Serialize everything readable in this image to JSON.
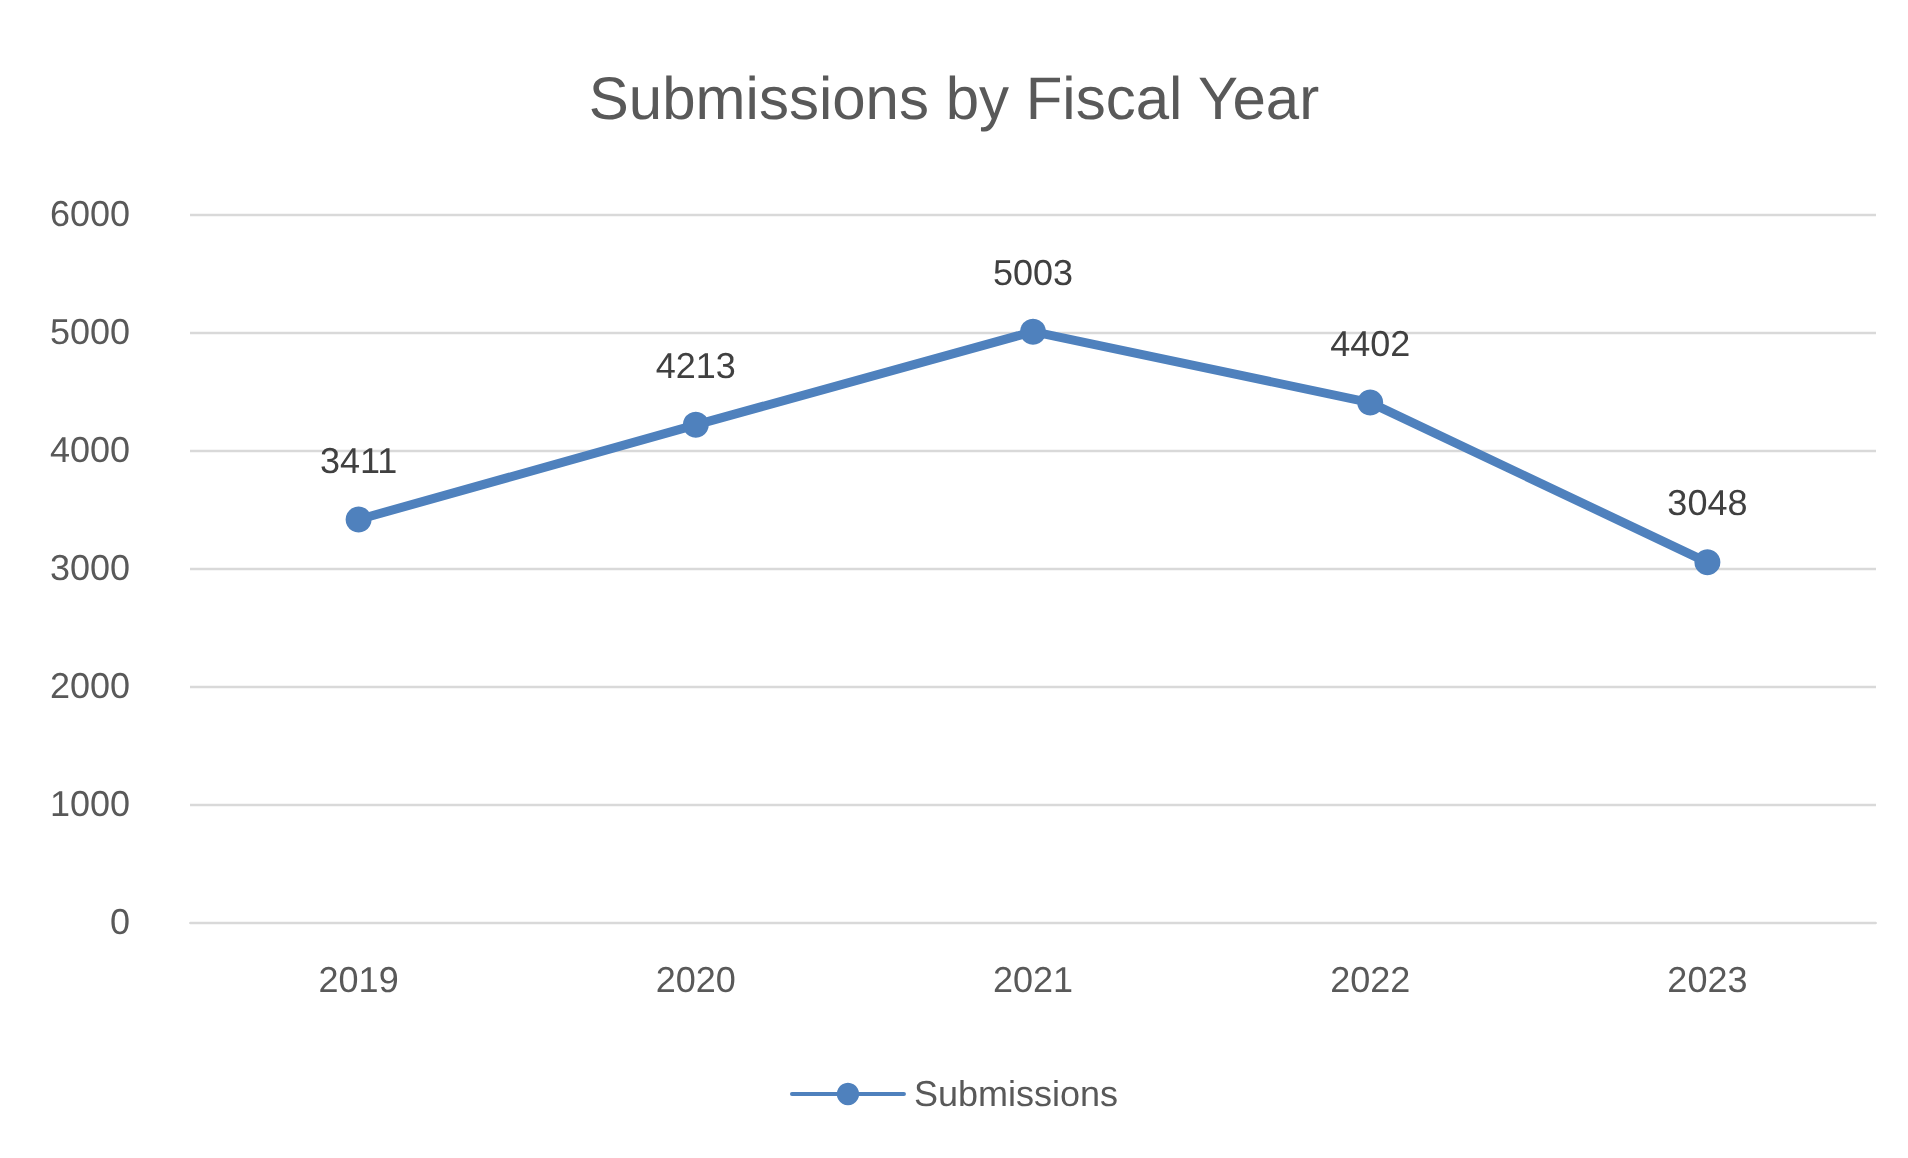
{
  "chart_data": {
    "type": "line",
    "title": "Submissions by Fiscal Year",
    "categories": [
      "2019",
      "2020",
      "2021",
      "2022",
      "2023"
    ],
    "series": [
      {
        "name": "Submissions",
        "color": "#4f81bd",
        "values": [
          3411,
          4213,
          5003,
          4402,
          3048
        ]
      }
    ],
    "ylim": [
      0,
      6000
    ],
    "yticks": [
      0,
      1000,
      2000,
      3000,
      4000,
      5000,
      6000
    ],
    "grid": "y",
    "legend": "bottom",
    "marker": "circle",
    "line_style": "solid",
    "data_labels": true
  }
}
